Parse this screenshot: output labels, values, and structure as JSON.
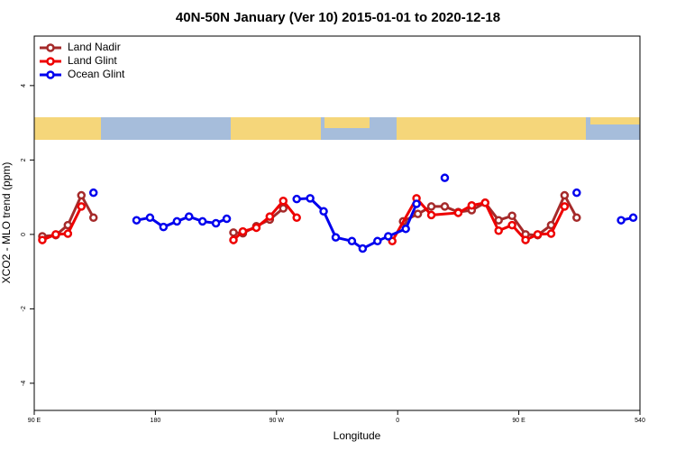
{
  "chart_data": {
    "type": "line",
    "title": "40N-50N January (Ver 10)   2015-01-01 to 2020-12-18",
    "x_label": "Longitude",
    "y_label": "XCO2 - MLO trend (ppm)",
    "xlim": [
      90,
      540
    ],
    "xticks": [
      {
        "value": 90,
        "label": "90 E"
      },
      180,
      {
        "value": 270,
        "label": "90 W"
      },
      {
        "value": 360,
        "label": "0"
      },
      {
        "value": 450,
        "label": "90 E"
      },
      540
    ],
    "ylim": [
      -4.73,
      5.33
    ],
    "yticks": [
      -4,
      -2,
      0,
      2,
      4
    ],
    "grid": false,
    "legend": "top-left",
    "series": [
      {
        "name": "Land Nadir",
        "color": "#a52a2a",
        "x": [
          96,
          106,
          115,
          125,
          134,
          null,
          238,
          245,
          255,
          265,
          275,
          null,
          364,
          375,
          385,
          395,
          405,
          415,
          425,
          435,
          445,
          455,
          464,
          474,
          484,
          493
        ],
        "values": [
          -0.05,
          -0.02,
          0.25,
          1.05,
          0.45,
          null,
          0.05,
          0.03,
          0.22,
          0.4,
          0.7,
          null,
          0.35,
          0.55,
          0.75,
          0.75,
          0.6,
          0.65,
          0.85,
          0.38,
          0.5,
          0.0,
          -0.02,
          0.25,
          1.05,
          0.45
        ]
      },
      {
        "name": "Land Glint",
        "color": "#ee0000",
        "x": [
          96,
          106,
          115,
          125,
          null,
          238,
          245,
          255,
          265,
          275,
          285,
          null,
          356,
          374,
          385,
          405,
          415,
          425,
          435,
          445,
          455,
          464,
          474,
          484
        ],
        "values": [
          -0.15,
          0.0,
          0.02,
          0.75,
          null,
          -0.15,
          0.08,
          0.18,
          0.48,
          0.9,
          0.45,
          null,
          -0.18,
          0.97,
          0.52,
          0.58,
          0.78,
          0.85,
          0.1,
          0.25,
          -0.15,
          0.0,
          0.02,
          0.75
        ]
      },
      {
        "name": "Ocean Glint",
        "color": "#0000ee",
        "x": [
          134,
          null,
          166,
          176,
          186,
          196,
          205,
          215,
          225,
          233,
          null,
          285,
          295,
          305,
          314,
          326,
          334,
          345,
          353,
          366,
          374,
          null,
          395,
          null,
          493,
          null,
          526,
          535
        ],
        "values": [
          1.12,
          null,
          0.38,
          0.45,
          0.2,
          0.35,
          0.48,
          0.35,
          0.3,
          0.42,
          null,
          0.95,
          0.97,
          0.62,
          -0.08,
          -0.18,
          -0.38,
          -0.18,
          -0.05,
          0.15,
          0.82,
          null,
          1.52,
          null,
          1.12,
          null,
          0.38,
          0.45
        ]
      }
    ]
  }
}
